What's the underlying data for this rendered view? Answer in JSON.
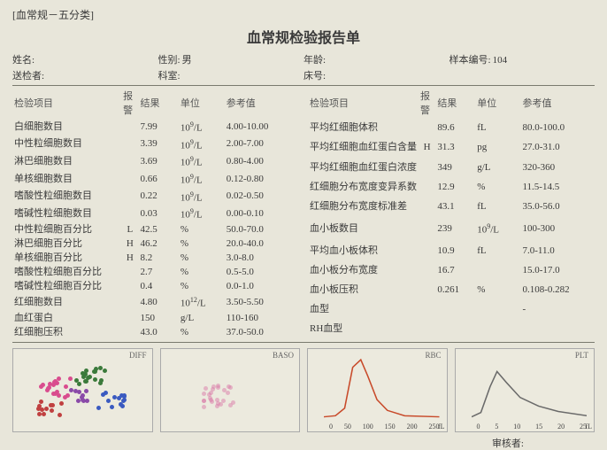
{
  "header_tag": "[血常规－五分类]",
  "title": "血常规检验报告单",
  "meta": {
    "name_label": "姓名:",
    "name": "",
    "sex_label": "性别:",
    "sex": "男",
    "age_label": "年龄:",
    "age": "",
    "sample_no_label": "样本编号:",
    "sample_no": "104",
    "sender_label": "送检者:",
    "sender": "",
    "dept_label": "科室:",
    "dept": "",
    "bed_label": "床号:",
    "bed": ""
  },
  "columns": {
    "name": "检验项目",
    "warn": "报警",
    "result": "结果",
    "unit": "单位",
    "ref": "参考值"
  },
  "left_rows": [
    {
      "n": "白细胞数目",
      "w": "",
      "r": "7.99",
      "u": "10^9/L",
      "f": "4.00-10.00"
    },
    {
      "n": "中性粒细胞数目",
      "w": "",
      "r": "3.39",
      "u": "10^9/L",
      "f": "2.00-7.00"
    },
    {
      "n": "淋巴细胞数目",
      "w": "",
      "r": "3.69",
      "u": "10^9/L",
      "f": "0.80-4.00"
    },
    {
      "n": "单核细胞数目",
      "w": "",
      "r": "0.66",
      "u": "10^9/L",
      "f": "0.12-0.80"
    },
    {
      "n": "嗜酸性粒细胞数目",
      "w": "",
      "r": "0.22",
      "u": "10^9/L",
      "f": "0.02-0.50"
    },
    {
      "n": "嗜碱性粒细胞数目",
      "w": "",
      "r": "0.03",
      "u": "10^9/L",
      "f": "0.00-0.10"
    },
    {
      "n": "中性粒细胞百分比",
      "w": "L",
      "r": "42.5",
      "u": "%",
      "f": "50.0-70.0"
    },
    {
      "n": "淋巴细胞百分比",
      "w": "H",
      "r": "46.2",
      "u": "%",
      "f": "20.0-40.0"
    },
    {
      "n": "单核细胞百分比",
      "w": "H",
      "r": "8.2",
      "u": "%",
      "f": "3.0-8.0"
    },
    {
      "n": "嗜酸性粒细胞百分比",
      "w": "",
      "r": "2.7",
      "u": "%",
      "f": "0.5-5.0"
    },
    {
      "n": "嗜碱性粒细胞百分比",
      "w": "",
      "r": "0.4",
      "u": "%",
      "f": "0.0-1.0"
    },
    {
      "n": "红细胞数目",
      "w": "",
      "r": "4.80",
      "u": "10^12/L",
      "f": "3.50-5.50"
    },
    {
      "n": "血红蛋白",
      "w": "",
      "r": "150",
      "u": "g/L",
      "f": "110-160"
    },
    {
      "n": "红细胞压积",
      "w": "",
      "r": "43.0",
      "u": "%",
      "f": "37.0-50.0"
    }
  ],
  "right_rows": [
    {
      "n": "平均红细胞体积",
      "w": "",
      "r": "89.6",
      "u": "fL",
      "f": "80.0-100.0"
    },
    {
      "n": "平均红细胞血红蛋白含量",
      "w": "H",
      "r": "31.3",
      "u": "pg",
      "f": "27.0-31.0"
    },
    {
      "n": "平均红细胞血红蛋白浓度",
      "w": "",
      "r": "349",
      "u": "g/L",
      "f": "320-360"
    },
    {
      "n": "红细胞分布宽度变异系数",
      "w": "",
      "r": "12.9",
      "u": "%",
      "f": "11.5-14.5"
    },
    {
      "n": "红细胞分布宽度标准差",
      "w": "",
      "r": "43.1",
      "u": "fL",
      "f": "35.0-56.0"
    },
    {
      "n": "血小板数目",
      "w": "",
      "r": "239",
      "u": "10^9/L",
      "f": "100-300"
    },
    {
      "n": "平均血小板体积",
      "w": "",
      "r": "10.9",
      "u": "fL",
      "f": "7.0-11.0"
    },
    {
      "n": "血小板分布宽度",
      "w": "",
      "r": "16.7",
      "u": "",
      "f": "15.0-17.0"
    },
    {
      "n": "血小板压积",
      "w": "",
      "r": "0.261",
      "u": "%",
      "f": "0.108-0.282"
    },
    {
      "n": "血型",
      "w": "",
      "r": "",
      "u": "",
      "f": "-"
    },
    {
      "n": "RH血型",
      "w": "",
      "r": "",
      "u": "",
      "f": ""
    }
  ],
  "charts": {
    "c1": {
      "label": "DIFF",
      "type": "scatter",
      "colors": [
        "#d94c8e",
        "#3b7a3b",
        "#c04040",
        "#3a5ac0",
        "#8a4aa8"
      ]
    },
    "c2": {
      "label": "BASO",
      "type": "scatter",
      "colors": [
        "#d97aa8"
      ]
    },
    "c3": {
      "label": "RBC",
      "type": "line",
      "color": "#c84a2a",
      "ticks": [
        "0",
        "50",
        "100",
        "150",
        "200",
        "250"
      ],
      "unit": "fL"
    },
    "c4": {
      "label": "PLT",
      "type": "line",
      "color": "#6a6a6a",
      "ticks": [
        "0",
        "5",
        "10",
        "15",
        "20",
        "25"
      ],
      "unit": "fL"
    }
  },
  "footer": {
    "reviewer_label": "审核者:",
    "reviewer": ""
  }
}
